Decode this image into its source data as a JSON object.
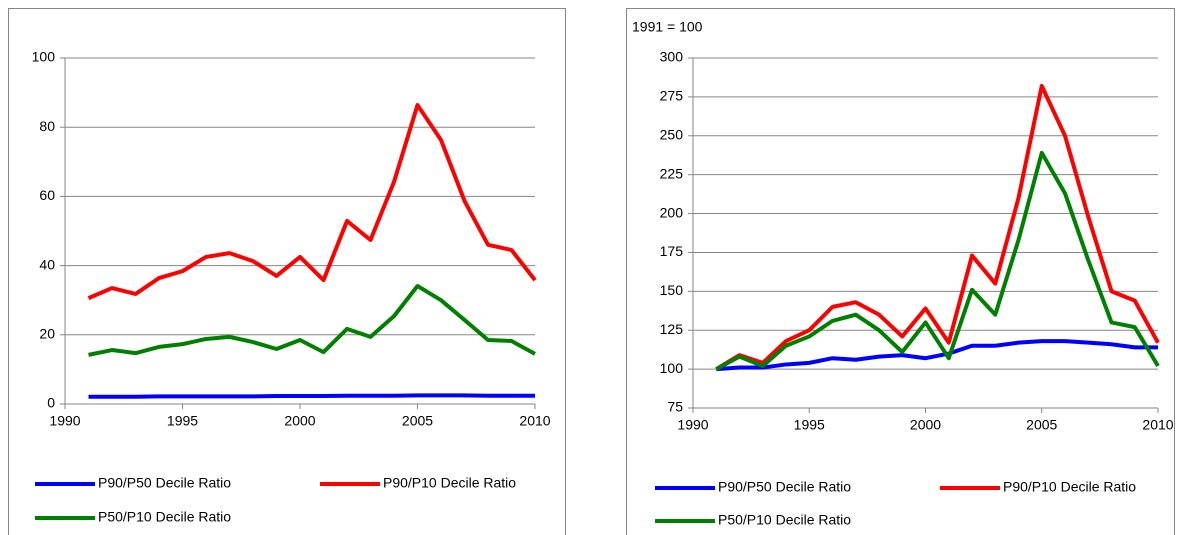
{
  "chart_data": [
    {
      "type": "line",
      "x": [
        1991,
        1992,
        1993,
        1994,
        1995,
        1996,
        1997,
        1998,
        1999,
        2000,
        2001,
        2002,
        2003,
        2004,
        2005,
        2006,
        2007,
        2008,
        2009,
        2010
      ],
      "series": [
        {
          "name": "P90/P50 Decile Ratio",
          "color": "#0000ff",
          "values": [
            2.1,
            2.1,
            2.1,
            2.2,
            2.2,
            2.2,
            2.2,
            2.2,
            2.3,
            2.3,
            2.3,
            2.4,
            2.4,
            2.4,
            2.5,
            2.5,
            2.5,
            2.4,
            2.4,
            2.4
          ]
        },
        {
          "name": "P90/P10 Decile Ratio",
          "color": "#ff0000",
          "values": [
            30.6,
            33.5,
            31.8,
            36.4,
            38.4,
            42.5,
            43.6,
            41.3,
            37,
            42.5,
            35.8,
            52.9,
            47.4,
            64.2,
            86.4,
            76.3,
            58.7,
            46,
            44.5,
            35.8
          ]
        },
        {
          "name": "P50/P10 Decile Ratio",
          "color": "#008000",
          "values": [
            14.2,
            15.6,
            14.7,
            16.5,
            17.3,
            18.8,
            19.4,
            17.9,
            15.9,
            18.5,
            15,
            21.7,
            19.4,
            25.4,
            34.1,
            30,
            24.3,
            18.5,
            18.2,
            14.5
          ]
        }
      ],
      "xlim": [
        1990,
        2010
      ],
      "xticks": [
        1990,
        1995,
        2000,
        2005,
        2010
      ],
      "ylim": [
        0,
        100
      ],
      "yticks": [
        0,
        20,
        40,
        60,
        80,
        100
      ],
      "grid": true
    },
    {
      "type": "line",
      "annotation": "1991 = 100",
      "x": [
        1991,
        1992,
        1993,
        1994,
        1995,
        1996,
        1997,
        1998,
        1999,
        2000,
        2001,
        2002,
        2003,
        2004,
        2005,
        2006,
        2007,
        2008,
        2009,
        2010
      ],
      "series": [
        {
          "name": "P90/P50 Decile Ratio",
          "color": "#0000ff",
          "values": [
            100,
            101,
            101,
            103,
            104,
            107,
            106,
            108,
            109,
            107,
            110,
            115,
            115,
            117,
            118,
            118,
            117,
            116,
            114,
            114
          ]
        },
        {
          "name": "P90/P10 Decile Ratio",
          "color": "#ff0000",
          "values": [
            100,
            109,
            104,
            118,
            125,
            140,
            143,
            135,
            121,
            139,
            117,
            173,
            155,
            210,
            282,
            250,
            198,
            150,
            144,
            117
          ]
        },
        {
          "name": "P50/P10 Decile Ratio",
          "color": "#008000",
          "values": [
            100,
            108,
            102,
            115,
            121,
            131,
            135,
            125,
            111,
            130,
            107,
            151,
            135,
            183,
            239,
            213,
            170,
            130,
            127,
            102
          ]
        }
      ],
      "xlim": [
        1990,
        2010
      ],
      "xticks": [
        1990,
        1995,
        2000,
        2005,
        2010
      ],
      "ylim": [
        75,
        300
      ],
      "yticks": [
        75,
        100,
        125,
        150,
        175,
        200,
        225,
        250,
        275,
        300
      ],
      "grid": true
    }
  ]
}
